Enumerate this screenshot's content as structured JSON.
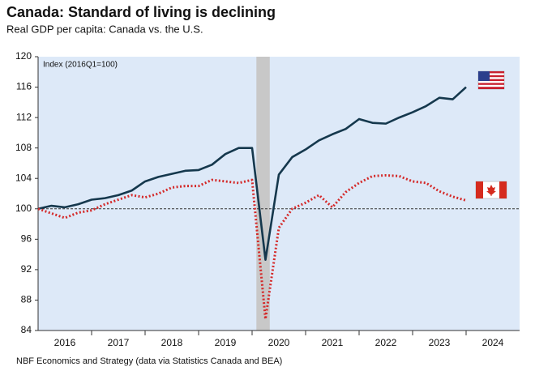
{
  "chart_data": {
    "type": "line",
    "title": "Canada: Standard of living is declining",
    "subtitle": "Real GDP per capita: Canada vs. the U.S.",
    "axis_note": "Index (2016Q1=100)",
    "source": "NBF Economics and Strategy (data via Statistics Canada and BEA)",
    "x": [
      2016,
      2016.25,
      2016.5,
      2016.75,
      2017,
      2017.25,
      2017.5,
      2017.75,
      2018,
      2018.25,
      2018.5,
      2018.75,
      2019,
      2019.25,
      2019.5,
      2019.75,
      2020,
      2020.25,
      2020.5,
      2020.75,
      2021,
      2021.25,
      2021.5,
      2021.75,
      2022,
      2022.25,
      2022.5,
      2022.75,
      2023,
      2023.25,
      2023.5,
      2023.75,
      2024
    ],
    "series": [
      {
        "color": "#15384d",
        "style": "solid",
        "values": [
          100.0,
          100.4,
          100.2,
          100.6,
          101.2,
          101.4,
          101.8,
          102.4,
          103.6,
          104.2,
          104.6,
          105.0,
          105.1,
          105.8,
          107.2,
          108.0,
          108.0,
          93.3,
          104.5,
          106.8,
          107.8,
          109.0,
          109.8,
          110.5,
          111.8,
          111.3,
          111.2,
          112.0,
          112.7,
          113.5,
          114.6,
          114.4,
          116.0
        ]
      },
      {
        "color": "#d42a2a",
        "style": "dotted",
        "values": [
          100.0,
          99.4,
          98.8,
          99.5,
          99.8,
          100.6,
          101.2,
          101.8,
          101.5,
          102.0,
          102.8,
          103.0,
          103.0,
          103.8,
          103.6,
          103.4,
          103.8,
          85.5,
          97.5,
          100.0,
          100.8,
          101.8,
          100.2,
          102.2,
          103.4,
          104.3,
          104.4,
          104.3,
          103.6,
          103.4,
          102.3,
          101.6,
          101.1
        ]
      }
    ],
    "xlim": [
      2016,
      2025
    ],
    "xticks": [
      {
        "value": 2016.5,
        "label": "2016"
      },
      {
        "value": 2017.5,
        "label": "2017"
      },
      {
        "value": 2018.5,
        "label": "2018"
      },
      {
        "value": 2019.5,
        "label": "2019"
      },
      {
        "value": 2020.5,
        "label": "2020"
      },
      {
        "value": 2021.5,
        "label": "2021"
      },
      {
        "value": 2022.5,
        "label": "2022"
      },
      {
        "value": 2023.5,
        "label": "2023"
      },
      {
        "value": 2024.5,
        "label": "2024"
      }
    ],
    "ylim": [
      84,
      120
    ],
    "yticks": [
      84,
      88,
      92,
      96,
      100,
      104,
      108,
      112,
      116,
      120
    ],
    "reference_line": 100,
    "shaded_span": [
      2020.08,
      2020.33
    ],
    "background": "#dde9f8"
  }
}
